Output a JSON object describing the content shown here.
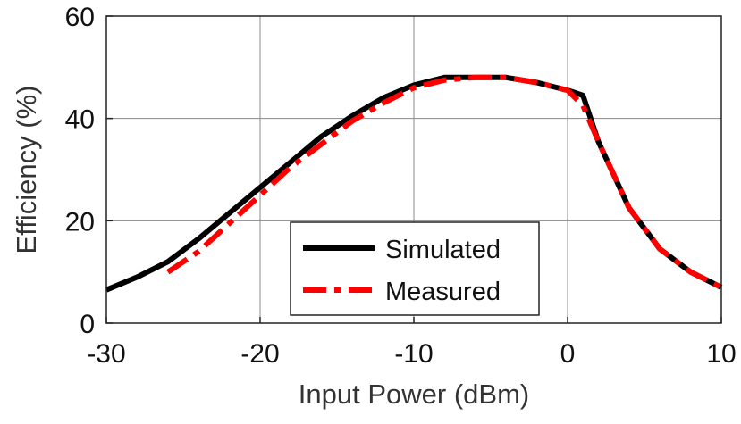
{
  "chart_data": {
    "type": "line",
    "title": "",
    "xlabel": "Input Power (dBm)",
    "ylabel": "Efficiency (%)",
    "xlim": [
      -30,
      10
    ],
    "ylim": [
      0,
      60
    ],
    "x_ticks": [
      -30,
      -20,
      -10,
      0,
      10
    ],
    "y_ticks": [
      0,
      20,
      40,
      60
    ],
    "x_tick_labels": [
      "-30",
      "-20",
      "-10",
      "0",
      "10"
    ],
    "y_tick_labels": [
      "0",
      "20",
      "40",
      "60"
    ],
    "grid": true,
    "legend_position": "bottom-center",
    "series": [
      {
        "name": "Simulated",
        "color": "#000000",
        "style": "solid",
        "x": [
          -30,
          -28,
          -26,
          -24,
          -22,
          -20,
          -18,
          -16,
          -14,
          -12,
          -10,
          -8,
          -6,
          -4,
          -2,
          0,
          1,
          2,
          4,
          6,
          8,
          10
        ],
        "y": [
          6.5,
          9.0,
          12.0,
          16.5,
          21.5,
          26.5,
          31.5,
          36.5,
          40.5,
          44.0,
          46.5,
          48.0,
          48.0,
          48.0,
          47.0,
          45.5,
          44.5,
          35.5,
          22.5,
          14.5,
          10.0,
          7.0
        ]
      },
      {
        "name": "Measured",
        "color": "#ff0000",
        "style": "dashdot",
        "x": [
          -26,
          -24,
          -22,
          -20,
          -18,
          -16,
          -14,
          -12,
          -10,
          -8,
          -6,
          -4,
          -2,
          0,
          1,
          2,
          4,
          6,
          8,
          10
        ],
        "y": [
          10.0,
          14.0,
          19.5,
          25.0,
          30.5,
          35.0,
          39.5,
          43.0,
          46.0,
          47.5,
          48.0,
          48.0,
          47.0,
          45.5,
          42.5,
          35.5,
          22.5,
          14.5,
          10.0,
          7.0
        ]
      }
    ]
  }
}
